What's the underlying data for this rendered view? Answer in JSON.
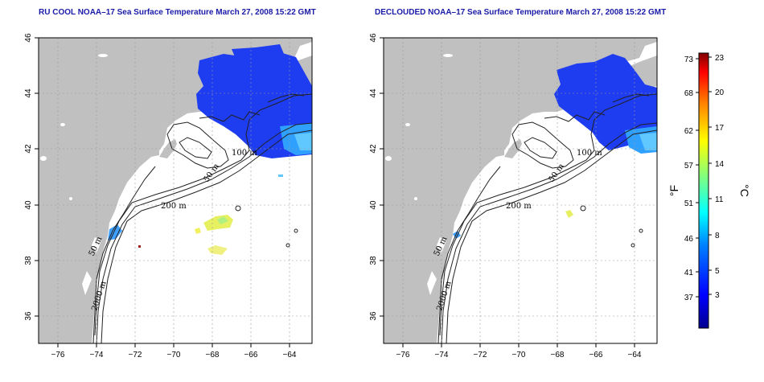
{
  "panels": [
    {
      "title": "RU COOL NOAA–17 Sea Surface Temperature March 27, 2008 15:22 GMT",
      "contour_labels": [
        "100 m",
        "50 m",
        "200 m",
        "50 m",
        "2000 m"
      ]
    },
    {
      "title": "DECLOUDED NOAA–17 Sea Surface Temperature March 27, 2008 15:22 GMT",
      "contour_labels": [
        "100 m",
        "50 m",
        "200 m",
        "50 m",
        "2000 m"
      ]
    }
  ],
  "axes": {
    "x_ticks": [
      "−76",
      "−74",
      "−72",
      "−70",
      "−68",
      "−66",
      "−64"
    ],
    "y_ticks": [
      "36",
      "38",
      "40",
      "42",
      "44",
      "46"
    ]
  },
  "colorbar": {
    "fahrenheit_label": "°F",
    "celsius_label": "°C",
    "fahrenheit_ticks": [
      "73",
      "68",
      "62",
      "57",
      "51",
      "46",
      "41",
      "37"
    ],
    "celsius_ticks": [
      "23",
      "20",
      "17",
      "14",
      "11",
      "8",
      "5",
      "3"
    ],
    "colors": [
      "#00008f",
      "#0000ff",
      "#0080ff",
      "#00ffff",
      "#80ff80",
      "#ffff00",
      "#ff8000",
      "#ff0000",
      "#800000"
    ]
  },
  "colors": {
    "land": "#c0c0c0",
    "ocean": "#ffffff",
    "cold_water": "#1e3cf0",
    "cool_water": "#30a0ff"
  }
}
